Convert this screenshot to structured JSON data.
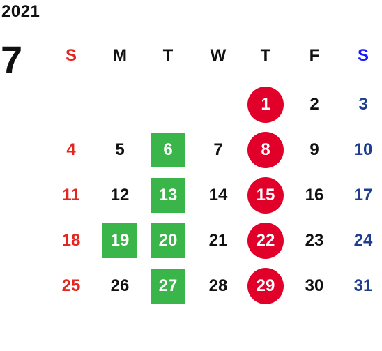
{
  "calendar": {
    "year": "2021",
    "month": "7",
    "colors": {
      "default": "#111111",
      "sunday": "#e3261f",
      "saturday": "#1f3e8c",
      "saturday_header": "#1a1aff",
      "holiday_bg": "#e0002a",
      "event_bg": "#3ab54a",
      "highlight_text": "#ffffff"
    },
    "weekdays": [
      {
        "label": "S",
        "kind": "sunday"
      },
      {
        "label": "M",
        "kind": "weekday"
      },
      {
        "label": "T",
        "kind": "weekday"
      },
      {
        "label": "W",
        "kind": "weekday"
      },
      {
        "label": "T",
        "kind": "weekday"
      },
      {
        "label": "F",
        "kind": "weekday"
      },
      {
        "label": "S",
        "kind": "saturday"
      }
    ],
    "weeks": [
      [
        {
          "label": "",
          "style": "none"
        },
        {
          "label": "",
          "style": "none"
        },
        {
          "label": "",
          "style": "none"
        },
        {
          "label": "",
          "style": "none"
        },
        {
          "label": "1",
          "style": "circle"
        },
        {
          "label": "2",
          "style": "plain"
        },
        {
          "label": "3",
          "style": "plain"
        }
      ],
      [
        {
          "label": "4",
          "style": "plain"
        },
        {
          "label": "5",
          "style": "plain"
        },
        {
          "label": "6",
          "style": "box"
        },
        {
          "label": "7",
          "style": "plain"
        },
        {
          "label": "8",
          "style": "circle"
        },
        {
          "label": "9",
          "style": "plain"
        },
        {
          "label": "10",
          "style": "plain"
        }
      ],
      [
        {
          "label": "11",
          "style": "plain"
        },
        {
          "label": "12",
          "style": "plain"
        },
        {
          "label": "13",
          "style": "box"
        },
        {
          "label": "14",
          "style": "plain"
        },
        {
          "label": "15",
          "style": "circle"
        },
        {
          "label": "16",
          "style": "plain"
        },
        {
          "label": "17",
          "style": "plain"
        }
      ],
      [
        {
          "label": "18",
          "style": "plain"
        },
        {
          "label": "19",
          "style": "box"
        },
        {
          "label": "20",
          "style": "box"
        },
        {
          "label": "21",
          "style": "plain"
        },
        {
          "label": "22",
          "style": "circle"
        },
        {
          "label": "23",
          "style": "plain"
        },
        {
          "label": "24",
          "style": "plain"
        }
      ],
      [
        {
          "label": "25",
          "style": "plain"
        },
        {
          "label": "26",
          "style": "plain"
        },
        {
          "label": "27",
          "style": "box"
        },
        {
          "label": "28",
          "style": "plain"
        },
        {
          "label": "29",
          "style": "circle"
        },
        {
          "label": "30",
          "style": "plain"
        },
        {
          "label": "31",
          "style": "plain"
        }
      ]
    ]
  }
}
